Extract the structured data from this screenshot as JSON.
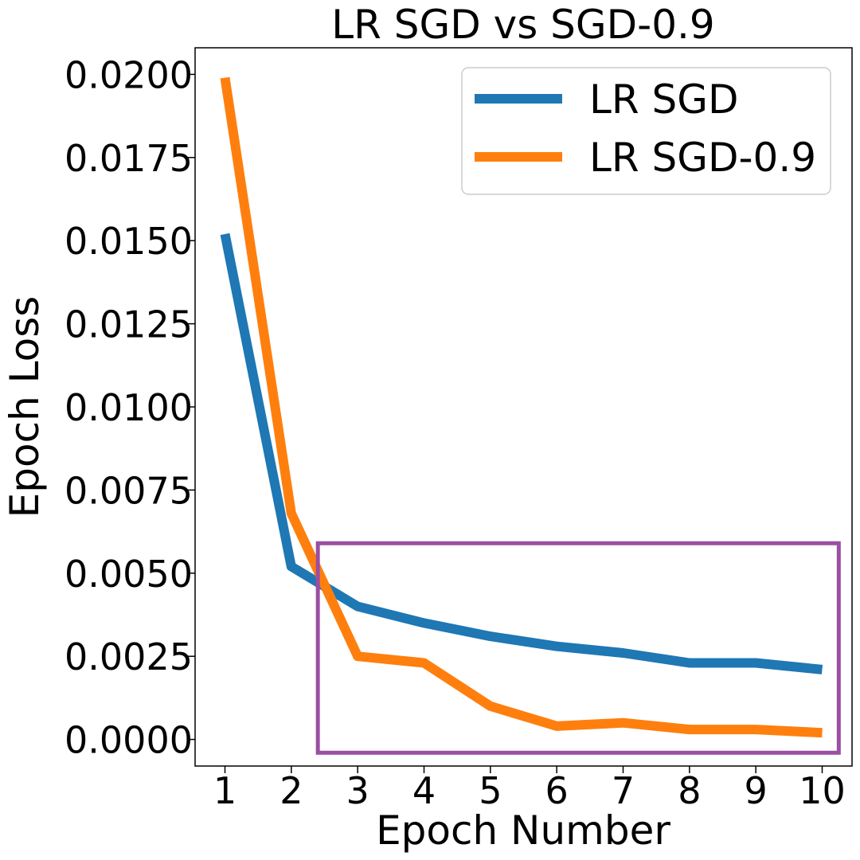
{
  "chart_data": {
    "type": "line",
    "title": "LR SGD vs SGD-0.9",
    "xlabel": "Epoch Number",
    "ylabel": "Epoch Loss",
    "x": [
      1,
      2,
      3,
      4,
      5,
      6,
      7,
      8,
      9,
      10
    ],
    "xticks": [
      "1",
      "2",
      "3",
      "4",
      "5",
      "6",
      "7",
      "8",
      "9",
      "10"
    ],
    "xlim": [
      0.55,
      10.45
    ],
    "ylim": [
      -0.0008,
      0.0208
    ],
    "yticks": [
      0.0,
      0.0025,
      0.005,
      0.0075,
      0.01,
      0.0125,
      0.015,
      0.0175,
      0.02
    ],
    "ytick_labels": [
      "0.0000",
      "0.0025",
      "0.0050",
      "0.0075",
      "0.0100",
      "0.0125",
      "0.0150",
      "0.0175",
      "0.0200"
    ],
    "grid": false,
    "legend_position": "top-right",
    "series": [
      {
        "name": "LR SGD",
        "color": "#1f77b4",
        "values": [
          0.0152,
          0.0052,
          0.004,
          0.0035,
          0.0031,
          0.0028,
          0.0026,
          0.0023,
          0.0023,
          0.0021
        ]
      },
      {
        "name": "LR SGD-0.9",
        "color": "#ff7f0e",
        "values": [
          0.0199,
          0.0068,
          0.0025,
          0.0023,
          0.001,
          0.0004,
          0.0005,
          0.0003,
          0.0003,
          0.0002
        ]
      }
    ],
    "annotation": {
      "shape": "rectangle",
      "color": "#9b4ea2",
      "x_range": [
        2.4,
        10.25
      ],
      "y_range": [
        -0.0004,
        0.0059
      ]
    }
  }
}
